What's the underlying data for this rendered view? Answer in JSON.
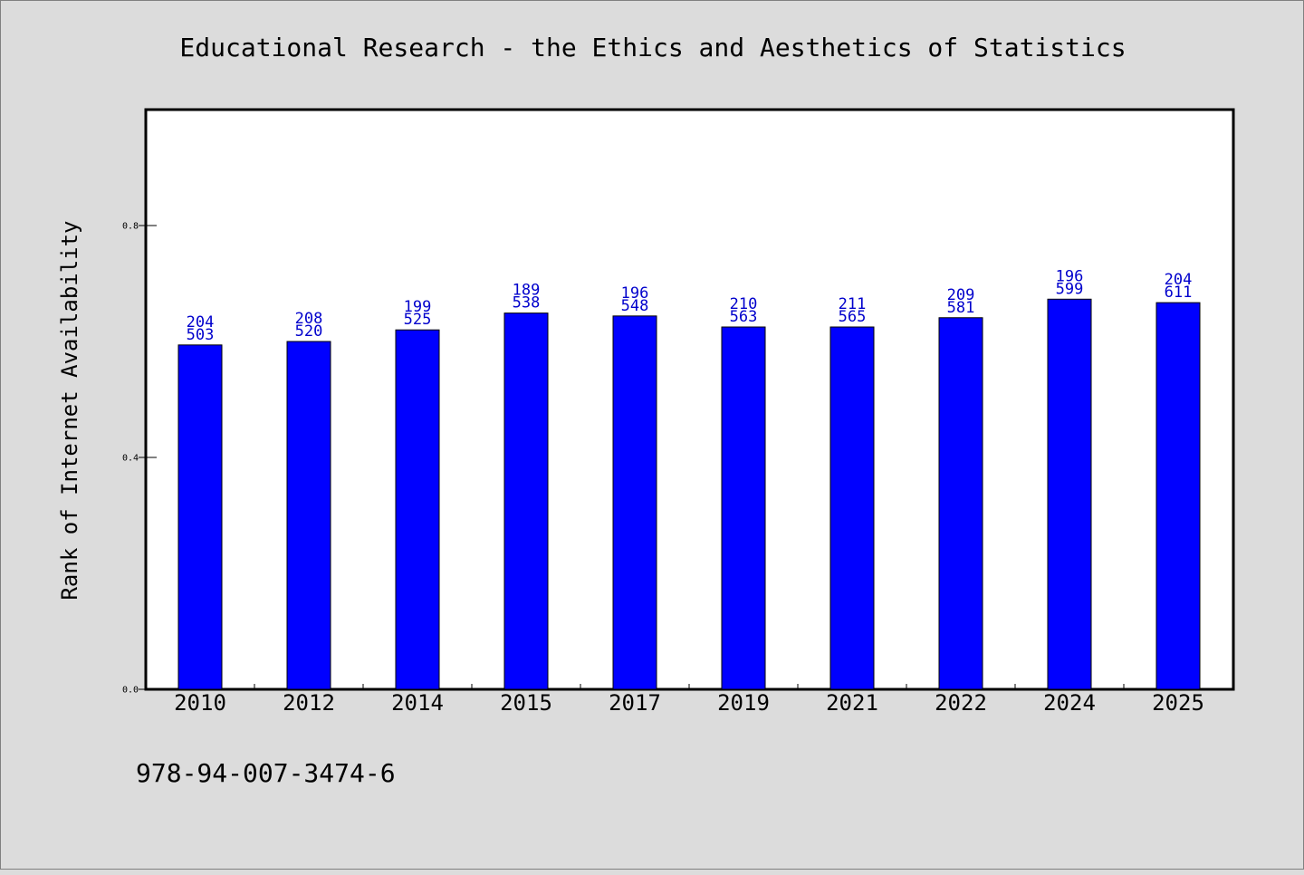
{
  "chart_data": {
    "type": "bar",
    "title": "Educational Research - the Ethics and Aesthetics of Statistics",
    "xlabel": "",
    "ylabel": "Rank of Internet Availability",
    "categories": [
      "2010",
      "2012",
      "2014",
      "2015",
      "2017",
      "2019",
      "2021",
      "2022",
      "2024",
      "2025"
    ],
    "values": [
      0.594,
      0.6,
      0.62,
      0.649,
      0.644,
      0.625,
      0.625,
      0.641,
      0.673,
      0.667
    ],
    "labels_top": [
      "204",
      "208",
      "199",
      "189",
      "196",
      "210",
      "211",
      "209",
      "196",
      "204"
    ],
    "labels_bottom": [
      "503",
      "520",
      "525",
      "538",
      "548",
      "563",
      "565",
      "581",
      "599",
      "611"
    ],
    "yticks": [
      "0.0",
      "0.4",
      "0.8"
    ],
    "ylim": [
      0,
      1.0
    ],
    "grid": false,
    "legend": "none",
    "bar_color": "#0000ff",
    "label_color": "#0000cc"
  },
  "footer": {
    "isbn": "978-94-007-3474-6"
  }
}
